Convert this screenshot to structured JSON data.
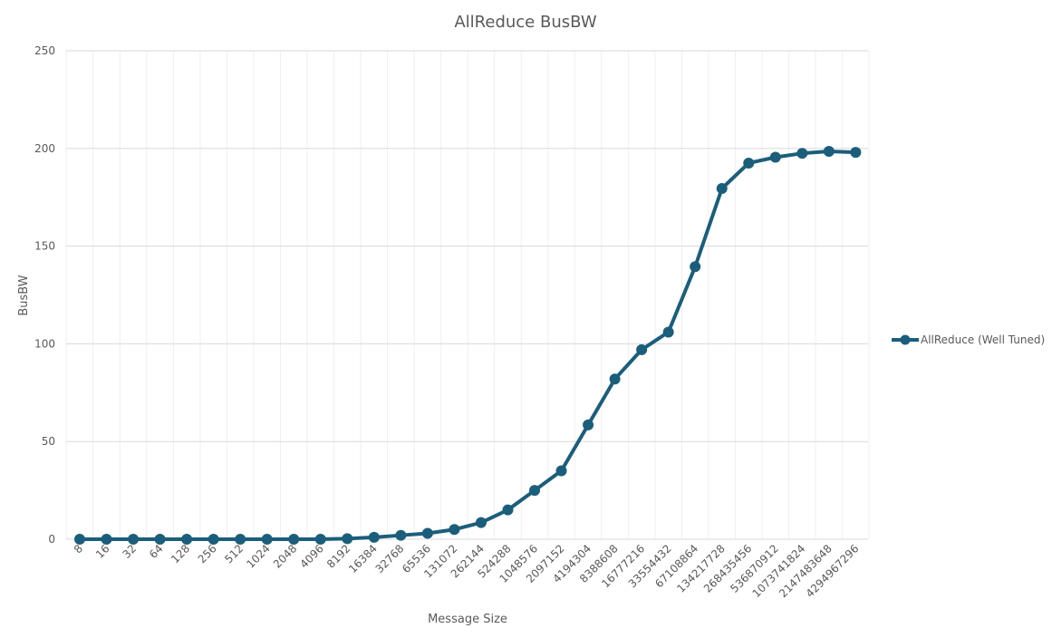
{
  "chart_data": {
    "type": "line",
    "title": "AllReduce BusBW",
    "xlabel": "Message Size",
    "ylabel": "BusBW",
    "ylim": [
      0,
      250
    ],
    "yticks": [
      0,
      50,
      100,
      150,
      200,
      250
    ],
    "grid": true,
    "legend_position": "right",
    "categories": [
      "8",
      "16",
      "32",
      "64",
      "128",
      "256",
      "512",
      "1024",
      "2048",
      "4096",
      "8192",
      "16384",
      "32768",
      "65536",
      "131072",
      "262144",
      "524288",
      "1048576",
      "2097152",
      "4194304",
      "8388608",
      "16777216",
      "33554432",
      "67108864",
      "134217728",
      "268435456",
      "536870912",
      "1073741824",
      "2147483648",
      "4294967296"
    ],
    "series": [
      {
        "name": "AllReduce (Well Tuned)",
        "color": "#1b5e7b",
        "values": [
          0,
          0,
          0,
          0,
          0,
          0,
          0,
          0,
          0,
          0,
          0.3,
          1,
          2,
          3,
          5,
          8.5,
          15,
          25,
          35,
          58.5,
          82,
          97,
          106,
          139.5,
          179.5,
          192.5,
          195.5,
          197.5,
          198.5,
          198
        ]
      }
    ]
  }
}
